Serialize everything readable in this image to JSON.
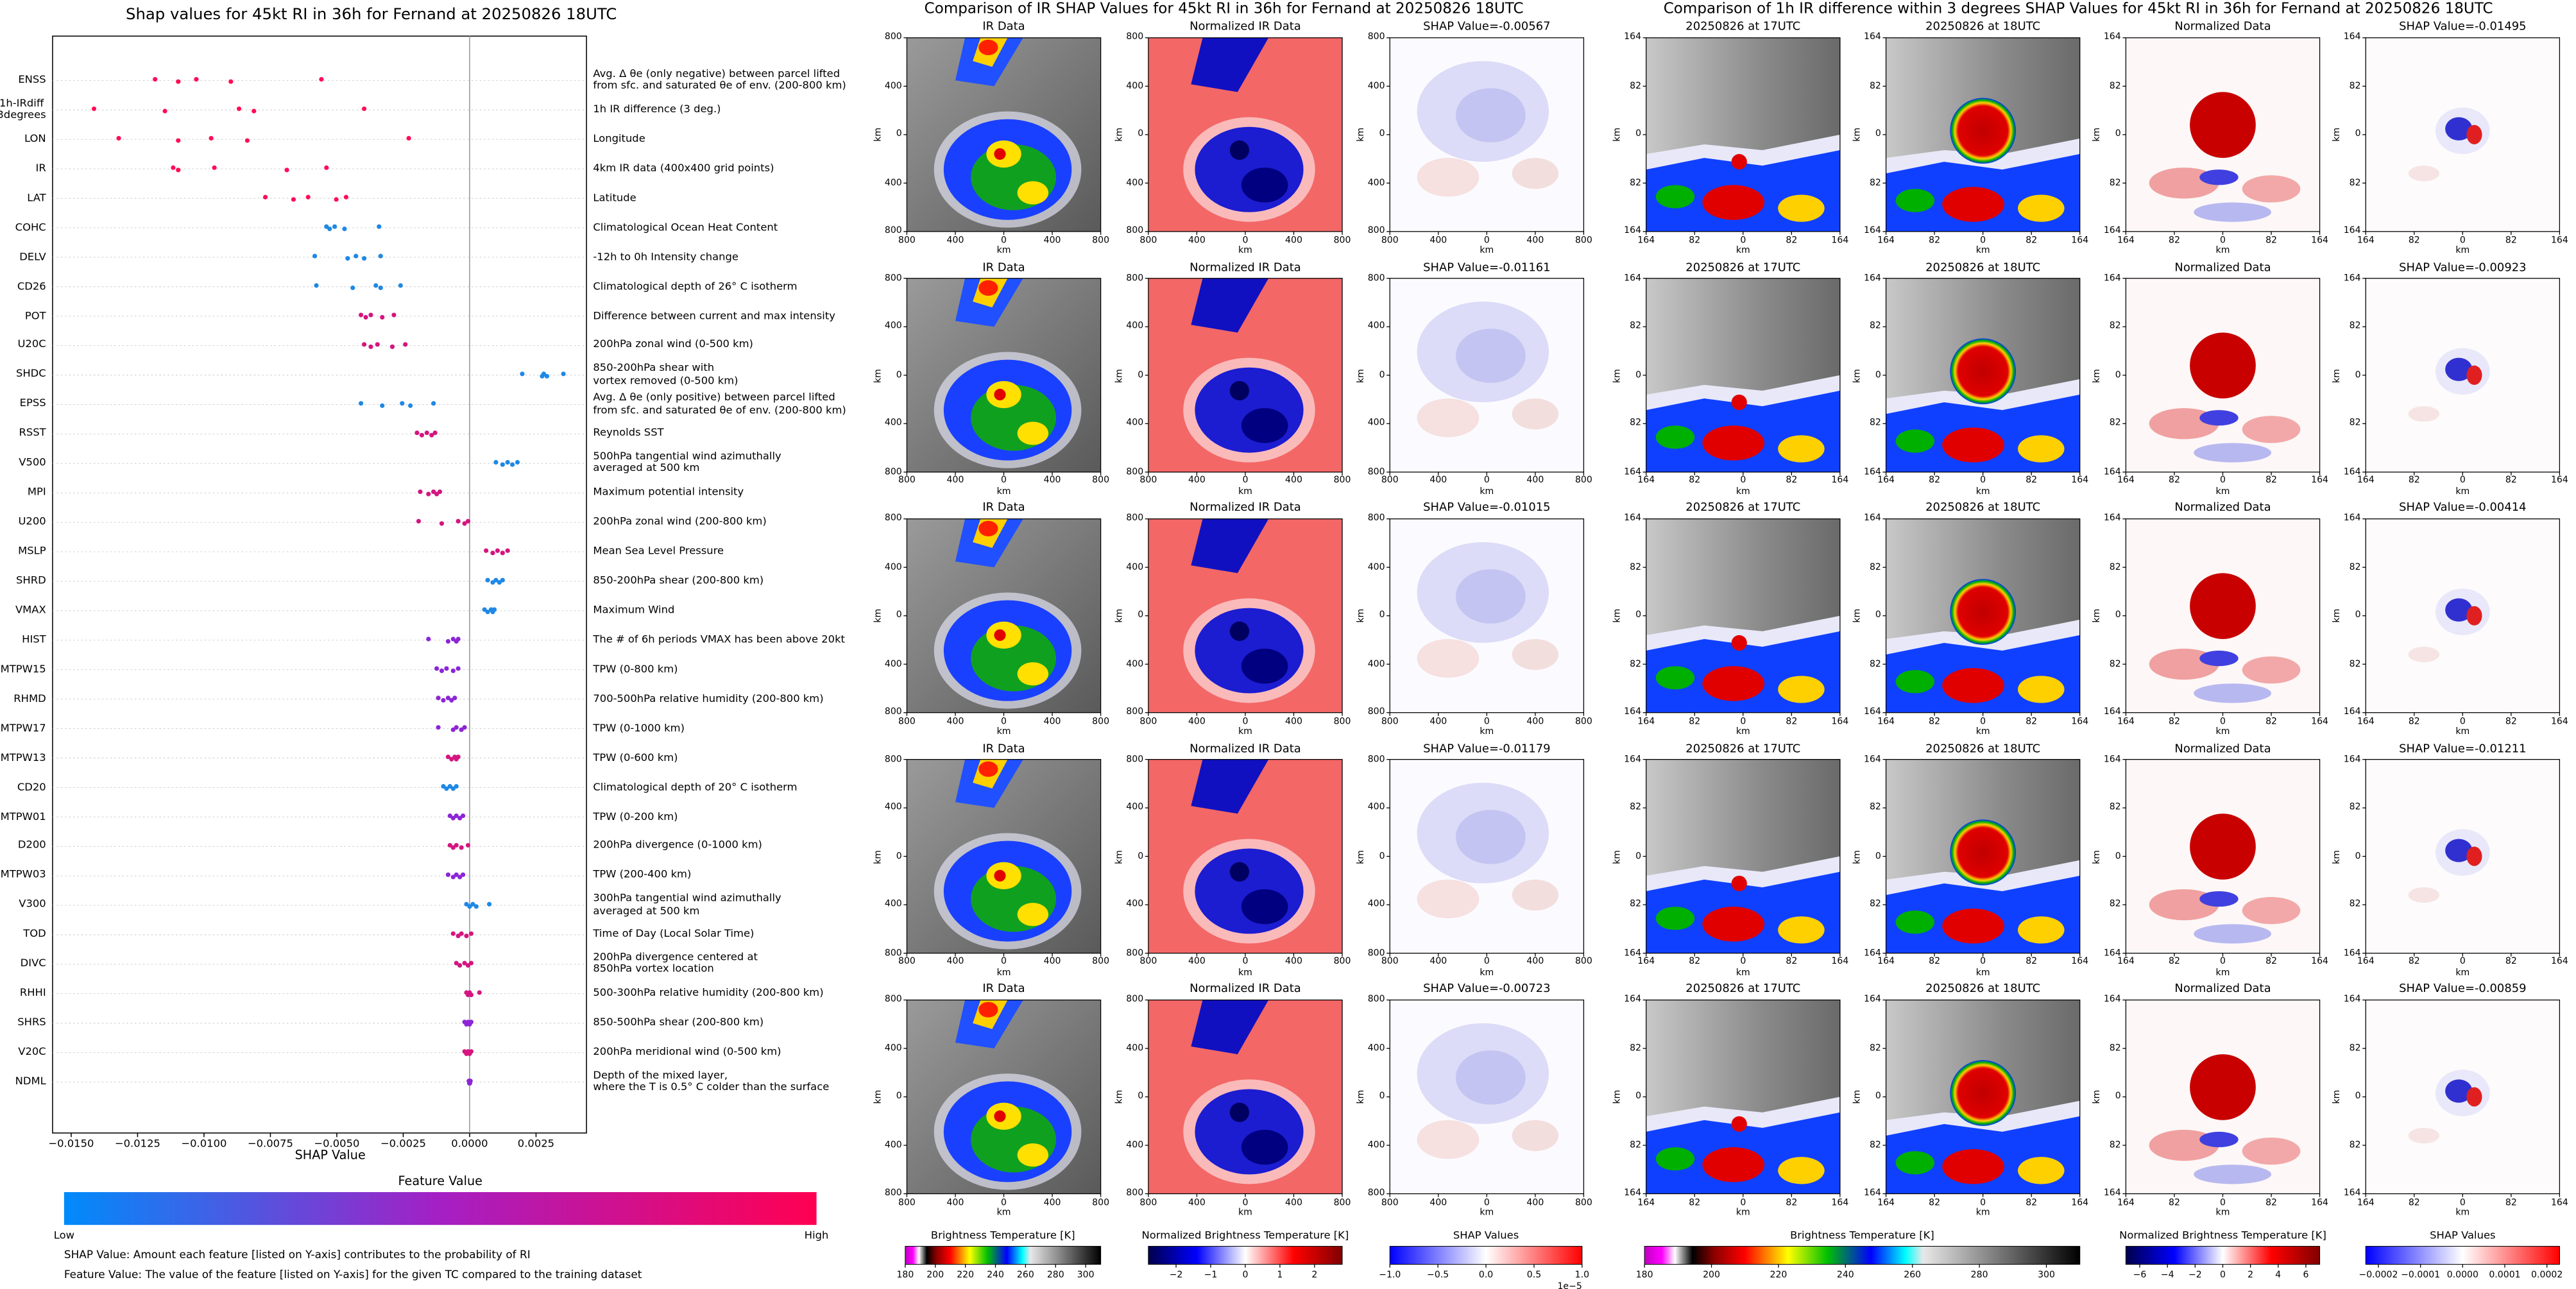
{
  "chart_data": [
    {
      "type": "beeswarm",
      "title": "Shap values for 45kt RI in 36h for Fernand at 20250826 18UTC",
      "xlabel": "SHAP Value",
      "xlim": [
        -0.0157,
        0.0044
      ],
      "xticks": [
        {
          "value": -0.015,
          "label": "−0.0150"
        },
        {
          "value": -0.0125,
          "label": "−0.0125"
        },
        {
          "value": -0.01,
          "label": "−0.0100"
        },
        {
          "value": -0.0075,
          "label": "−0.0075"
        },
        {
          "value": -0.005,
          "label": "−0.0050"
        },
        {
          "value": -0.0025,
          "label": "−0.0025"
        },
        {
          "value": 0,
          "label": "0.0000"
        },
        {
          "value": 0.0025,
          "label": "0.0025"
        }
      ],
      "categories": [
        "ENSS",
        "1h-IRdiff\n3degrees",
        "LON",
        "IR",
        "LAT",
        "COHC",
        "DELV",
        "CD26",
        "POT",
        "U20C",
        "SHDC",
        "EPSS",
        "RSST",
        "V500",
        "MPI",
        "U200",
        "MSLP",
        "SHRD",
        "VMAX",
        "HIST",
        "MTPW15",
        "RHMD",
        "MTPW17",
        "MTPW13",
        "CD20",
        "MTPW01",
        "D200",
        "MTPW03",
        "V300",
        "TOD",
        "DIVC",
        "RHHI",
        "SHRS",
        "V20C",
        "NDML"
      ],
      "descriptions": [
        "Avg. Δ θe (only negative) between parcel lifted\nfrom sfc. and saturated θe of env. (200-800 km)",
        "1h IR difference (3 deg.)",
        "Longitude",
        "4km IR data (400x400 grid points)",
        "Latitude",
        "Climatological Ocean Heat Content",
        "-12h to 0h Intensity change",
        "Climatological depth of 26° C isotherm",
        "Difference between current and max intensity",
        "200hPa zonal wind (0-500 km)",
        "850-200hPa shear with\nvortex removed (0-500 km)",
        "Avg. Δ θe (only positive) between parcel lifted\nfrom sfc. and saturated θe of env. (200-800 km)",
        "Reynolds SST",
        "500hPa tangential wind azimuthally\naveraged at 500 km",
        "Maximum potential intensity",
        "200hPa zonal wind (200-800 km)",
        "Mean Sea Level Pressure",
        "850-200hPa shear (200-800 km)",
        "Maximum Wind",
        "The # of 6h periods VMAX has been above 20kt",
        "TPW (0-800 km)",
        "700-500hPa relative humidity (200-800 km)",
        "TPW (0-1000 km)",
        "TPW (0-600 km)",
        "Climatological depth of 20° C isotherm",
        "TPW (0-200 km)",
        "200hPa divergence (0-1000 km)",
        "TPW (200-400 km)",
        "300hPa tangential wind azimuthally\naveraged at 500 km",
        "Time of Day (Local Solar Time)",
        "200hPa divergence centered at\n850hPa vortex location",
        "500-300hPa relative humidity (200-800 km)",
        "850-500hPa shear (200-800 km)",
        "200hPa meridional wind (0-500 km)",
        "Depth of the mixed layer,\nwhere the T is 0.5° C colder than the surface"
      ],
      "colors": [
        "#ff0d57",
        "#ff0d57",
        "#ff0d57",
        "#ff0d57",
        "#ff0d57",
        "#1e88e5",
        "#1e88e5",
        "#1e88e5",
        "#d4157f",
        "#d4157f",
        "#1e88e5",
        "#1e88e5",
        "#d4157f",
        "#1e88e5",
        "#d4157f",
        "#d4157f",
        "#d4157f",
        "#1e88e5",
        "#1e88e5",
        "#8c25d6",
        "#8c25d6",
        "#8c25d6",
        "#8c25d6",
        "#d4157f",
        "#1e88e5",
        "#8c25d6",
        "#d4157f",
        "#8c25d6",
        "#1e88e5",
        "#d4157f",
        "#d4157f",
        "#d4157f",
        "#8c25d6",
        "#d4157f",
        "#8c25d6"
      ],
      "values": [
        [
          -0.01184,
          -0.01097,
          -0.01029,
          -0.00899,
          -0.00558
        ],
        [
          -0.01414,
          -0.01147,
          -0.00868,
          -0.00812,
          -0.00397
        ],
        [
          -0.01321,
          -0.01097,
          -0.00973,
          -0.00837,
          -0.00229
        ],
        [
          -0.01116,
          -0.01097,
          -0.00961,
          -0.00688,
          -0.00539
        ],
        [
          -0.00769,
          -0.00663,
          -0.00608,
          -0.00502,
          -0.00465
        ],
        [
          -0.00539,
          -0.00527,
          -0.00508,
          -0.00471,
          -0.00341
        ],
        [
          -0.00583,
          -0.00459,
          -0.00428,
          -0.00397,
          -0.00335
        ],
        [
          -0.00577,
          -0.0044,
          -0.00353,
          -0.00335,
          -0.0026
        ],
        [
          -0.00409,
          -0.00391,
          -0.00372,
          -0.00329,
          -0.00285
        ],
        [
          -0.00397,
          -0.00372,
          -0.00347,
          -0.00291,
          -0.00242
        ],
        [
          0.00198,
          0.00273,
          0.00279,
          0.00291,
          0.00353
        ],
        [
          -0.00409,
          -0.00329,
          -0.00254,
          -0.00223,
          -0.00136
        ],
        [
          -0.00198,
          -0.0018,
          -0.00161,
          -0.00143,
          -0.0013
        ],
        [
          0.00099,
          0.00124,
          0.00143,
          0.00161,
          0.0018
        ],
        [
          -0.00186,
          -0.00155,
          -0.00136,
          -0.00124,
          -0.00112
        ],
        [
          -0.00192,
          -0.00105,
          -0.00043,
          -0.00019,
          -6e-05
        ],
        [
          0.00062,
          0.00087,
          0.00105,
          0.00124,
          0.00143
        ],
        [
          0.00068,
          0.00087,
          0.00099,
          0.00112,
          0.00124
        ],
        [
          0.00056,
          0.00068,
          0.00081,
          0.00087,
          0.00093
        ],
        [
          -0.00155,
          -0.00081,
          -0.00062,
          -0.0005,
          -0.00043
        ],
        [
          -0.00124,
          -0.00105,
          -0.00087,
          -0.00062,
          -0.00043
        ],
        [
          -0.00118,
          -0.00099,
          -0.00081,
          -0.00068,
          -0.00056
        ],
        [
          -0.00118,
          -0.00062,
          -0.0005,
          -0.00031,
          -0.00019
        ],
        [
          -0.00081,
          -0.00068,
          -0.00056,
          -0.0005,
          -0.00043
        ],
        [
          -0.00099,
          -0.00087,
          -0.00074,
          -0.00062,
          -0.0005
        ],
        [
          -0.00074,
          -0.00062,
          -0.0005,
          -0.00037,
          -0.00025
        ],
        [
          -0.00074,
          -0.00062,
          -0.0005,
          -0.00031,
          -6e-05
        ],
        [
          -0.00081,
          -0.00062,
          -0.0005,
          -0.00037,
          -0.00025
        ],
        [
          -0.00012,
          0,
          0.00012,
          0.00025,
          0.00074
        ],
        [
          -0.00062,
          -0.00043,
          -0.00031,
          -0.00012,
          6e-05
        ],
        [
          -0.0005,
          -0.00037,
          -0.00019,
          -6e-05,
          6e-05
        ],
        [
          -0.00012,
          -6e-05,
          0,
          6e-05,
          0.00037
        ],
        [
          -0.00019,
          -0.00012,
          -6e-05,
          0,
          6e-05
        ],
        [
          -0.00019,
          -0.00012,
          -6e-05,
          0,
          6e-05
        ],
        [
          -3e-05,
          -1e-05,
          0,
          1e-05,
          3e-05
        ]
      ],
      "colorbar": {
        "label": "Feature Value",
        "low": "Low",
        "high": "High"
      },
      "notes": [
        "SHAP Value: Amount each feature [listed on Y-axis] contributes to the probability of RI",
        "Feature Value: The value of the feature [listed on Y-axis] for the given TC compared to the training dataset"
      ]
    },
    {
      "type": "image-grid",
      "title": "Comparison of IR SHAP Values for 45kt RI in 36h for Fernand at 20250826 18UTC",
      "panel_titles": [
        "IR Data",
        "Normalized IR Data"
      ],
      "shap_titles": [
        "SHAP Value=-0.00567",
        "SHAP Value=-0.01161",
        "SHAP Value=-0.01015",
        "SHAP Value=-0.01179",
        "SHAP Value=-0.00723"
      ],
      "xlabel": "km",
      "ylabel": "km",
      "xlim": [
        -800,
        800
      ],
      "xticks": [
        {
          "value": -800,
          "label": "800"
        },
        {
          "value": -400,
          "label": "400"
        },
        0,
        400,
        800
      ],
      "ylim": [
        -800,
        800
      ],
      "yticks": [
        800,
        400,
        0,
        {
          "value": -400,
          "label": "400"
        },
        {
          "value": -800,
          "label": "800"
        }
      ],
      "colorbars": [
        {
          "label": "Brightness Temperature [K]",
          "lim": [
            180,
            310
          ],
          "ticks": [
            180,
            200,
            220,
            240,
            260,
            280,
            300
          ]
        },
        {
          "label": "Normalized Brightness Temperature [K]",
          "lim": [
            -2.8,
            2.8
          ],
          "ticks": [
            {
              "value": -2,
              "label": "−2"
            },
            {
              "value": -1,
              "label": "−1"
            },
            0,
            1,
            2
          ]
        },
        {
          "label": "SHAP Values",
          "lim": [
            -1,
            1
          ],
          "ticks": [
            {
              "value": -1,
              "label": "−1.0"
            },
            {
              "value": -0.5,
              "label": "−0.5"
            },
            {
              "value": 0,
              "label": "0.0"
            },
            0.5,
            {
              "value": 1,
              "label": "1.0"
            }
          ],
          "offset": "1e−5"
        }
      ]
    },
    {
      "type": "image-grid",
      "title": "Comparison of 1h IR difference within 3 degrees SHAP Values for 45kt RI in 36h for Fernand at 20250826 18UTC",
      "panel_titles": [
        "20250826 at 17UTC",
        "20250826 at 18UTC",
        "Normalized Data"
      ],
      "shap_titles": [
        "SHAP Value=-0.01495",
        "SHAP Value=-0.00923",
        "SHAP Value=-0.00414",
        "SHAP Value=-0.01211",
        "SHAP Value=-0.00859"
      ],
      "xlabel": "km",
      "ylabel": "km",
      "xlim": [
        -164,
        164
      ],
      "xticks": [
        {
          "value": -164,
          "label": "164"
        },
        {
          "value": -82,
          "label": "82"
        },
        0,
        82,
        164
      ],
      "ylim": [
        -164,
        164
      ],
      "yticks": [
        164,
        82,
        0,
        {
          "value": -82,
          "label": "82"
        },
        {
          "value": -164,
          "label": "164"
        }
      ],
      "colorbars": [
        {
          "label": "Brightness Temperature [K]",
          "lim": [
            180,
            310
          ],
          "ticks": [
            180,
            200,
            220,
            240,
            260,
            280,
            300
          ]
        },
        {
          "label": "Normalized Brightness Temperature [K]",
          "lim": [
            -7,
            7
          ],
          "ticks": [
            {
              "value": -6,
              "label": "−6"
            },
            {
              "value": -4,
              "label": "−4"
            },
            {
              "value": -2,
              "label": "−2"
            },
            0,
            2,
            4,
            6
          ]
        },
        {
          "label": "SHAP Values",
          "lim": [
            -0.00023,
            0.00023
          ],
          "ticks": [
            {
              "value": -0.0002,
              "label": "−0.0002"
            },
            {
              "value": -0.0001,
              "label": "−0.0001"
            },
            {
              "value": 0,
              "label": "0.0000"
            },
            {
              "value": 0.0001,
              "label": "0.0001"
            },
            {
              "value": 0.0002,
              "label": "0.0002"
            }
          ]
        }
      ]
    }
  ]
}
